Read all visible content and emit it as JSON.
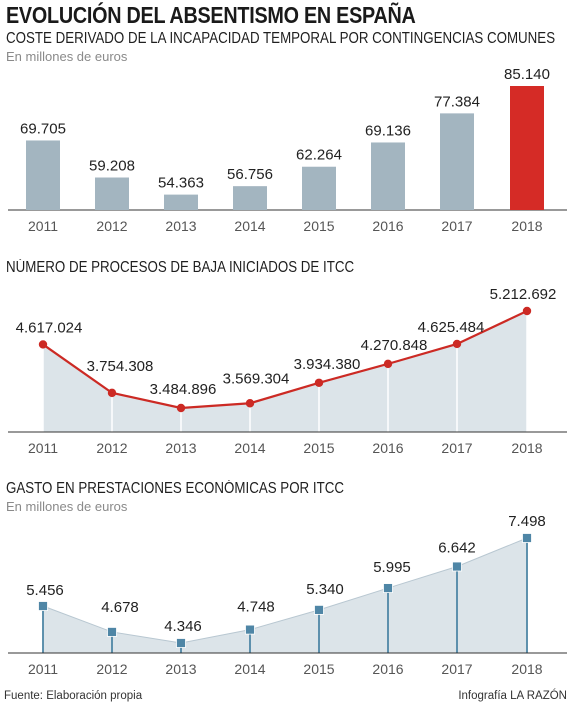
{
  "title": "EVOLUCIÓN DEL ABSENTISMO EN ESPAÑA",
  "footer": {
    "source": "Fuente: Elaboración propia",
    "credit": "Infografía LA RAZÓN"
  },
  "colors": {
    "bar": "#a3b5c0",
    "bar_highlight": "#d52b26",
    "line_red": "#cc2a24",
    "area_fill": "#dce4e9",
    "square_marker": "#4f86a6"
  },
  "chart_data": [
    {
      "type": "bar",
      "title": "COSTE DERIVADO DE LA INCAPACIDAD TEMPORAL POR CONTINGENCIAS COMUNES",
      "subtitle": "En millones de euros",
      "categories": [
        "2011",
        "2012",
        "2013",
        "2014",
        "2015",
        "2016",
        "2017",
        "2018"
      ],
      "values": [
        69705,
        59208,
        54363,
        56756,
        62264,
        69136,
        77384,
        85140
      ],
      "value_labels": [
        "69.705",
        "59.208",
        "54.363",
        "56.756",
        "62.264",
        "69.136",
        "77.384",
        "85.140"
      ],
      "highlight_category": "2018",
      "grid": false
    },
    {
      "type": "area",
      "title": "NÚMERO DE PROCESOS DE BAJA INICIADOS DE ITCC",
      "categories": [
        "2011",
        "2012",
        "2013",
        "2014",
        "2015",
        "2016",
        "2017",
        "2018"
      ],
      "values": [
        4617024,
        3754308,
        3484896,
        3569304,
        3934380,
        4270848,
        4625484,
        5212692
      ],
      "value_labels": [
        "4.617.024",
        "3.754.308",
        "3.484.896",
        "3.569.304",
        "3.934.380",
        "4.270.848",
        "4.625.484",
        "5.212.692"
      ],
      "marker": "circle",
      "grid": false
    },
    {
      "type": "area",
      "title": "GASTO EN PRESTACIONES ECONÓMICAS POR ITCC",
      "subtitle": "En millones de euros",
      "categories": [
        "2011",
        "2012",
        "2013",
        "2014",
        "2015",
        "2016",
        "2017",
        "2018"
      ],
      "values": [
        5456,
        4678,
        4346,
        4748,
        5340,
        5995,
        6642,
        7498
      ],
      "value_labels": [
        "5.456",
        "4.678",
        "4.346",
        "4.748",
        "5.340",
        "5.995",
        "6.642",
        "7.498"
      ],
      "marker": "square",
      "grid": false
    }
  ]
}
